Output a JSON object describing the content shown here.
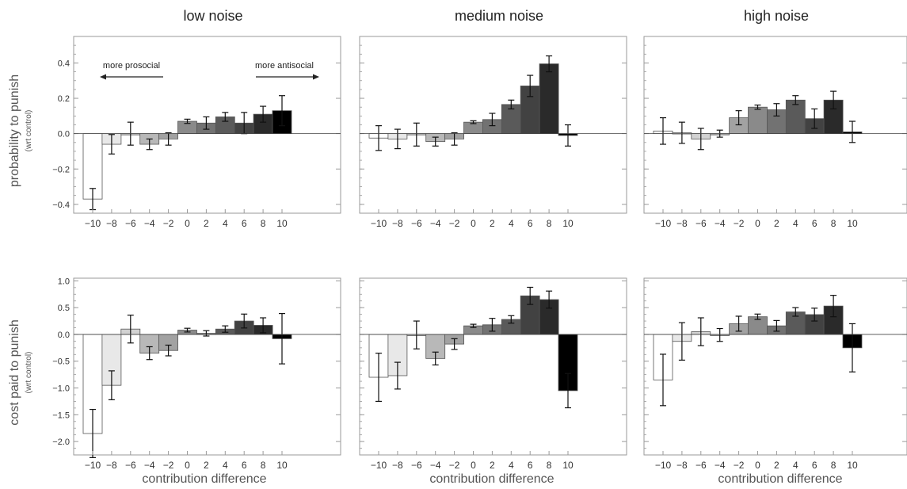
{
  "column_titles": [
    "low noise",
    "medium noise",
    "high noise"
  ],
  "row_labels": [
    {
      "main": "probability to punish",
      "sub": "(wrt control)"
    },
    {
      "main": "cost paid to punish",
      "sub": "(wrt control)"
    }
  ],
  "xlabel": "contribution difference",
  "annotations": {
    "left": "more prosocial",
    "right": "more antisocial"
  },
  "colors": {
    "bars": [
      "#ffffff",
      "#e8e8e8",
      "#d2d2d2",
      "#b8b8b8",
      "#a2a2a2",
      "#8a8a8a",
      "#727272",
      "#5a5a5a",
      "#424242",
      "#2a2a2a",
      "#000000"
    ],
    "frame": "#9a9a9a",
    "text": "#333333"
  },
  "chart_data": [
    {
      "type": "bar",
      "title": "low noise",
      "ylabel": "probability to punish (wrt control)",
      "xlabel": "",
      "categories": [
        -10,
        -8,
        -6,
        -4,
        -2,
        0,
        2,
        4,
        6,
        8,
        10
      ],
      "values": [
        -0.37,
        -0.06,
        0.0,
        -0.06,
        -0.03,
        0.07,
        0.06,
        0.095,
        0.06,
        0.11,
        0.13
      ],
      "errors": [
        0.06,
        0.055,
        0.065,
        0.03,
        0.035,
        0.012,
        0.035,
        0.025,
        0.06,
        0.045,
        0.085
      ],
      "ylim": [
        -0.45,
        0.55
      ],
      "yticks": [
        -0.4,
        -0.2,
        0.0,
        0.2,
        0.4
      ],
      "ytick_labels": [
        "-0.4",
        "-0.2",
        "0.0",
        "0.2",
        "0.4"
      ]
    },
    {
      "type": "bar",
      "title": "medium noise",
      "ylabel": "",
      "xlabel": "",
      "categories": [
        -10,
        -8,
        -6,
        -4,
        -2,
        0,
        2,
        4,
        6,
        8,
        10
      ],
      "values": [
        -0.025,
        -0.03,
        -0.005,
        -0.045,
        -0.03,
        0.065,
        0.08,
        0.165,
        0.27,
        0.395,
        -0.01
      ],
      "errors": [
        0.07,
        0.055,
        0.065,
        0.025,
        0.035,
        0.008,
        0.035,
        0.025,
        0.06,
        0.045,
        0.06
      ],
      "ylim": [
        -0.45,
        0.55
      ],
      "yticks": [
        -0.4,
        -0.2,
        0.0,
        0.2,
        0.4
      ],
      "ytick_labels": [
        "-0.4",
        "-0.2",
        "0.0",
        "0.2",
        "0.4"
      ]
    },
    {
      "type": "bar",
      "title": "high noise",
      "ylabel": "",
      "xlabel": "",
      "categories": [
        -10,
        -8,
        -6,
        -4,
        -2,
        0,
        2,
        4,
        6,
        8,
        10
      ],
      "values": [
        0.015,
        0.005,
        -0.03,
        0.0,
        0.09,
        0.15,
        0.135,
        0.19,
        0.085,
        0.19,
        0.01
      ],
      "errors": [
        0.075,
        0.06,
        0.06,
        0.02,
        0.04,
        0.012,
        0.035,
        0.025,
        0.055,
        0.05,
        0.06
      ],
      "ylim": [
        -0.45,
        0.55
      ],
      "yticks": [
        -0.4,
        -0.2,
        0.0,
        0.2,
        0.4
      ],
      "ytick_labels": [
        "-0.4",
        "-0.2",
        "0.0",
        "0.2",
        "0.4"
      ]
    },
    {
      "type": "bar",
      "title": "",
      "ylabel": "cost paid to punish (wrt control)",
      "xlabel": "contribution difference",
      "categories": [
        -10,
        -8,
        -6,
        -4,
        -2,
        0,
        2,
        4,
        6,
        8,
        10
      ],
      "values": [
        -1.85,
        -0.95,
        0.1,
        -0.35,
        -0.3,
        0.08,
        0.02,
        0.1,
        0.25,
        0.17,
        -0.08
      ],
      "errors": [
        0.45,
        0.27,
        0.26,
        0.12,
        0.1,
        0.035,
        0.05,
        0.06,
        0.13,
        0.14,
        0.47
      ],
      "ylim": [
        -2.25,
        1.05
      ],
      "yticks": [
        -2.0,
        -1.5,
        -1.0,
        -0.5,
        0.0,
        0.5,
        1.0
      ],
      "ytick_labels": [
        "-2.0",
        "-1.5",
        "-1.0",
        "-0.5",
        "0.0",
        "0.5",
        "1.0"
      ]
    },
    {
      "type": "bar",
      "title": "",
      "ylabel": "",
      "xlabel": "contribution difference",
      "categories": [
        -10,
        -8,
        -6,
        -4,
        -2,
        0,
        2,
        4,
        6,
        8,
        10
      ],
      "values": [
        -0.8,
        -0.77,
        -0.01,
        -0.45,
        -0.18,
        0.16,
        0.18,
        0.28,
        0.72,
        0.65,
        -1.05
      ],
      "errors": [
        0.45,
        0.25,
        0.26,
        0.12,
        0.1,
        0.03,
        0.12,
        0.07,
        0.16,
        0.16,
        0.32
      ],
      "ylim": [
        -2.25,
        1.05
      ],
      "yticks": [
        -2.0,
        -1.5,
        -1.0,
        -0.5,
        0.0,
        0.5,
        1.0
      ],
      "ytick_labels": [
        "-2.0",
        "-1.5",
        "-1.0",
        "-0.5",
        "0.0",
        "0.5",
        "1.0"
      ]
    },
    {
      "type": "bar",
      "title": "",
      "ylabel": "",
      "xlabel": "contribution difference",
      "categories": [
        -10,
        -8,
        -6,
        -4,
        -2,
        0,
        2,
        4,
        6,
        8,
        10
      ],
      "values": [
        -0.85,
        -0.13,
        0.05,
        -0.01,
        0.2,
        0.33,
        0.16,
        0.42,
        0.37,
        0.53,
        -0.25
      ],
      "errors": [
        0.48,
        0.35,
        0.26,
        0.12,
        0.14,
        0.05,
        0.1,
        0.08,
        0.12,
        0.2,
        0.45
      ],
      "ylim": [
        -2.25,
        1.05
      ],
      "yticks": [
        -2.0,
        -1.5,
        -1.0,
        -0.5,
        0.0,
        0.5,
        1.0
      ],
      "ytick_labels": [
        "-2.0",
        "-1.5",
        "-1.0",
        "-0.5",
        "0.0",
        "0.5",
        "1.0"
      ]
    }
  ]
}
